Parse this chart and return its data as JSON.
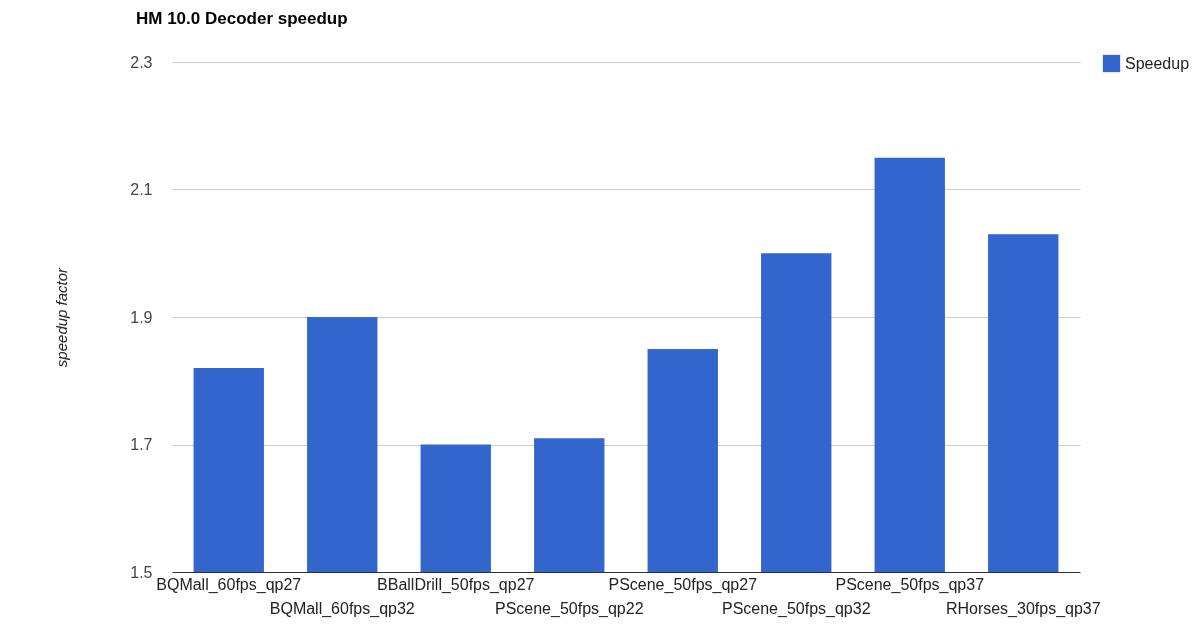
{
  "chart_data": {
    "type": "bar",
    "title": "HM 10.0 Decoder speedup",
    "ylabel": "speedup factor",
    "categories": [
      "BQMall_60fps_qp27",
      "BQMall_60fps_qp32",
      "BBallDrill_50fps_qp27",
      "PScene_50fps_qp22",
      "PScene_50fps_qp27",
      "PScene_50fps_qp32",
      "PScene_50fps_qp37",
      "RHorses_30fps_qp37"
    ],
    "series": [
      {
        "name": "Speedup",
        "color": "#3366cc",
        "values": [
          1.82,
          1.9,
          1.7,
          1.71,
          1.85,
          2.0,
          2.15,
          2.03
        ]
      }
    ],
    "ylim": [
      1.5,
      2.3
    ],
    "yticks": [
      1.5,
      1.7,
      1.9,
      2.1,
      2.3
    ],
    "grid": "y",
    "legend": "top right"
  }
}
